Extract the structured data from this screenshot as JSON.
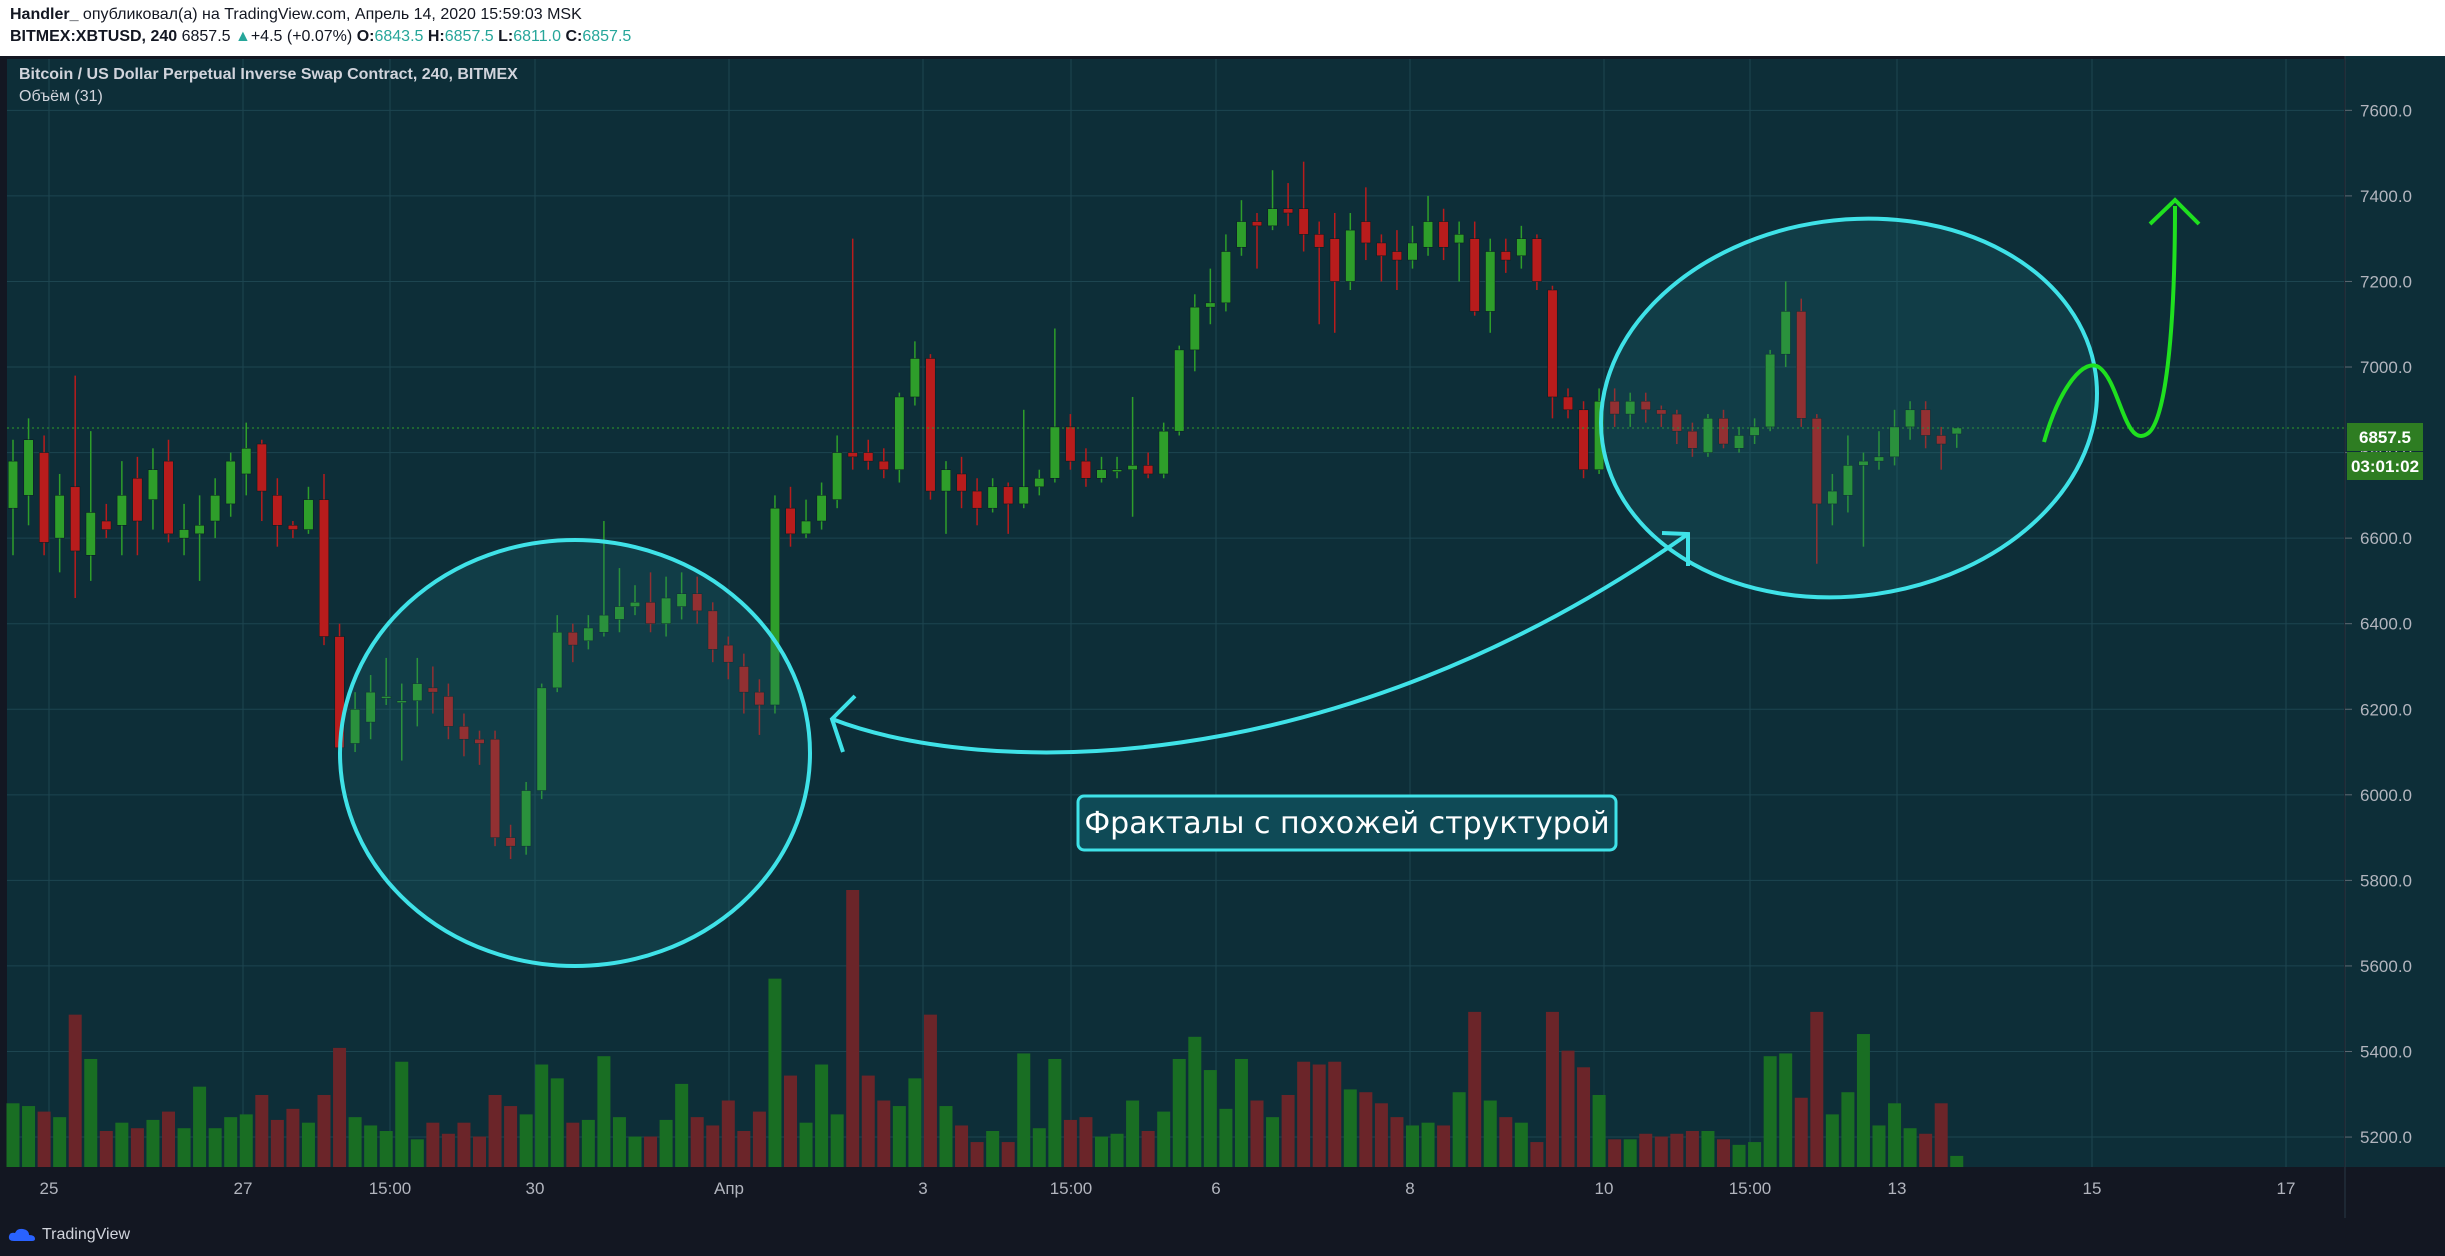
{
  "header": {
    "author": "Handler_",
    "published_text": " опубликовал(а) на TradingView.com, Апрель 14, 2020 15:59:03 MSK",
    "symbol": "BITMEX:XBTUSD, 240",
    "last": "6857.5",
    "change": "+4.5 (+0.07%)",
    "o_label": "O:",
    "o_val": "6843.5",
    "h_label": "H:",
    "h_val": "6857.5",
    "l_label": "L:",
    "l_val": "6811.0",
    "c_label": "C:",
    "c_val": "6857.5"
  },
  "legend": {
    "title": "Bitcoin / US Dollar Perpetual Inverse Swap Contract, 240, BITMEX",
    "volume_label": "Объём (31)"
  },
  "price_tag": {
    "price": "6857.5",
    "countdown": "03:01:02"
  },
  "annotation": {
    "text": "Фракталы с похожей структурой"
  },
  "footer": {
    "logo_text": "TradingView"
  },
  "colors": {
    "background": "#0d2e38",
    "up": "#2e9e2a",
    "down": "#b81c1c",
    "circle": "#3fe2e8",
    "projection": "#1fe01f"
  },
  "chart_data": {
    "type": "candlestick",
    "ylim": [
      5130,
      7720
    ],
    "y_ticks": [
      5200,
      5400,
      5600,
      5800,
      6000,
      6200,
      6400,
      6600,
      6800,
      7000,
      7200,
      7400,
      7600
    ],
    "x_labels": [
      "25",
      "27",
      "15:00",
      "30",
      "Апр",
      "3",
      "15:00",
      "6",
      "8",
      "10",
      "15:00",
      "13",
      "15",
      "17"
    ],
    "candles": [
      {
        "o": 6670,
        "c": 6780,
        "h": 6830,
        "l": 6560,
        "v": 0.23
      },
      {
        "o": 6700,
        "c": 6830,
        "h": 6880,
        "l": 6630,
        "v": 0.22
      },
      {
        "o": 6800,
        "c": 6590,
        "h": 6840,
        "l": 6560,
        "v": 0.2
      },
      {
        "o": 6600,
        "c": 6700,
        "h": 6750,
        "l": 6520,
        "v": 0.18
      },
      {
        "o": 6720,
        "c": 6570,
        "h": 6980,
        "l": 6460,
        "v": 0.55
      },
      {
        "o": 6560,
        "c": 6660,
        "h": 6850,
        "l": 6500,
        "v": 0.39
      },
      {
        "o": 6640,
        "c": 6620,
        "h": 6680,
        "l": 6600,
        "v": 0.13
      },
      {
        "o": 6630,
        "c": 6700,
        "h": 6780,
        "l": 6560,
        "v": 0.16
      },
      {
        "o": 6740,
        "c": 6640,
        "h": 6790,
        "l": 6560,
        "v": 0.14
      },
      {
        "o": 6690,
        "c": 6760,
        "h": 6810,
        "l": 6620,
        "v": 0.17
      },
      {
        "o": 6780,
        "c": 6610,
        "h": 6830,
        "l": 6590,
        "v": 0.2
      },
      {
        "o": 6600,
        "c": 6620,
        "h": 6680,
        "l": 6560,
        "v": 0.14
      },
      {
        "o": 6610,
        "c": 6630,
        "h": 6700,
        "l": 6500,
        "v": 0.29
      },
      {
        "o": 6640,
        "c": 6700,
        "h": 6740,
        "l": 6600,
        "v": 0.14
      },
      {
        "o": 6680,
        "c": 6780,
        "h": 6800,
        "l": 6650,
        "v": 0.18
      },
      {
        "o": 6750,
        "c": 6810,
        "h": 6870,
        "l": 6700,
        "v": 0.19
      },
      {
        "o": 6820,
        "c": 6710,
        "h": 6830,
        "l": 6640,
        "v": 0.26
      },
      {
        "o": 6700,
        "c": 6630,
        "h": 6740,
        "l": 6580,
        "v": 0.17
      },
      {
        "o": 6630,
        "c": 6620,
        "h": 6640,
        "l": 6600,
        "v": 0.21
      },
      {
        "o": 6620,
        "c": 6690,
        "h": 6720,
        "l": 6610,
        "v": 0.16
      },
      {
        "o": 6690,
        "c": 6370,
        "h": 6750,
        "l": 6350,
        "v": 0.26
      },
      {
        "o": 6370,
        "c": 6110,
        "h": 6400,
        "l": 6060,
        "v": 0.43
      },
      {
        "o": 6120,
        "c": 6200,
        "h": 6240,
        "l": 6100,
        "v": 0.18
      },
      {
        "o": 6170,
        "c": 6240,
        "h": 6280,
        "l": 6130,
        "v": 0.15
      },
      {
        "o": 6230,
        "c": 6230,
        "h": 6320,
        "l": 6210,
        "v": 0.13
      },
      {
        "o": 6220,
        "c": 6220,
        "h": 6260,
        "l": 6080,
        "v": 0.38
      },
      {
        "o": 6220,
        "c": 6260,
        "h": 6320,
        "l": 6160,
        "v": 0.1
      },
      {
        "o": 6250,
        "c": 6240,
        "h": 6300,
        "l": 6190,
        "v": 0.16
      },
      {
        "o": 6230,
        "c": 6160,
        "h": 6260,
        "l": 6130,
        "v": 0.12
      },
      {
        "o": 6160,
        "c": 6130,
        "h": 6190,
        "l": 6090,
        "v": 0.16
      },
      {
        "o": 6130,
        "c": 6120,
        "h": 6150,
        "l": 6070,
        "v": 0.11
      },
      {
        "o": 6130,
        "c": 5900,
        "h": 6150,
        "l": 5880,
        "v": 0.26
      },
      {
        "o": 5900,
        "c": 5880,
        "h": 5930,
        "l": 5850,
        "v": 0.22
      },
      {
        "o": 5880,
        "c": 6010,
        "h": 6030,
        "l": 5860,
        "v": 0.19
      },
      {
        "o": 6010,
        "c": 6250,
        "h": 6260,
        "l": 5990,
        "v": 0.37
      },
      {
        "o": 6250,
        "c": 6380,
        "h": 6420,
        "l": 6240,
        "v": 0.32
      },
      {
        "o": 6380,
        "c": 6350,
        "h": 6400,
        "l": 6310,
        "v": 0.16
      },
      {
        "o": 6360,
        "c": 6390,
        "h": 6420,
        "l": 6340,
        "v": 0.17
      },
      {
        "o": 6380,
        "c": 6420,
        "h": 6640,
        "l": 6370,
        "v": 0.4
      },
      {
        "o": 6410,
        "c": 6440,
        "h": 6530,
        "l": 6380,
        "v": 0.18
      },
      {
        "o": 6440,
        "c": 6450,
        "h": 6490,
        "l": 6420,
        "v": 0.11
      },
      {
        "o": 6450,
        "c": 6400,
        "h": 6520,
        "l": 6380,
        "v": 0.11
      },
      {
        "o": 6400,
        "c": 6460,
        "h": 6510,
        "l": 6370,
        "v": 0.17
      },
      {
        "o": 6440,
        "c": 6470,
        "h": 6520,
        "l": 6410,
        "v": 0.3
      },
      {
        "o": 6470,
        "c": 6430,
        "h": 6510,
        "l": 6400,
        "v": 0.18
      },
      {
        "o": 6430,
        "c": 6340,
        "h": 6450,
        "l": 6310,
        "v": 0.15
      },
      {
        "o": 6350,
        "c": 6310,
        "h": 6370,
        "l": 6270,
        "v": 0.24
      },
      {
        "o": 6300,
        "c": 6240,
        "h": 6330,
        "l": 6190,
        "v": 0.13
      },
      {
        "o": 6240,
        "c": 6210,
        "h": 6270,
        "l": 6140,
        "v": 0.2
      },
      {
        "o": 6210,
        "c": 6670,
        "h": 6700,
        "l": 6190,
        "v": 0.68
      },
      {
        "o": 6670,
        "c": 6610,
        "h": 6720,
        "l": 6580,
        "v": 0.33
      },
      {
        "o": 6610,
        "c": 6640,
        "h": 6690,
        "l": 6600,
        "v": 0.16
      },
      {
        "o": 6640,
        "c": 6700,
        "h": 6730,
        "l": 6620,
        "v": 0.37
      },
      {
        "o": 6690,
        "c": 6800,
        "h": 6840,
        "l": 6670,
        "v": 0.19
      },
      {
        "o": 6800,
        "c": 6790,
        "h": 7300,
        "l": 6760,
        "v": 1.0
      },
      {
        "o": 6800,
        "c": 6780,
        "h": 6830,
        "l": 6760,
        "v": 0.33
      },
      {
        "o": 6780,
        "c": 6760,
        "h": 6810,
        "l": 6740,
        "v": 0.24
      },
      {
        "o": 6760,
        "c": 6930,
        "h": 6940,
        "l": 6730,
        "v": 0.22
      },
      {
        "o": 6930,
        "c": 7020,
        "h": 7060,
        "l": 6910,
        "v": 0.32
      },
      {
        "o": 7020,
        "c": 6710,
        "h": 7030,
        "l": 6690,
        "v": 0.55
      },
      {
        "o": 6710,
        "c": 6760,
        "h": 6780,
        "l": 6610,
        "v": 0.22
      },
      {
        "o": 6750,
        "c": 6710,
        "h": 6790,
        "l": 6670,
        "v": 0.15
      },
      {
        "o": 6710,
        "c": 6670,
        "h": 6740,
        "l": 6630,
        "v": 0.09
      },
      {
        "o": 6670,
        "c": 6720,
        "h": 6740,
        "l": 6660,
        "v": 0.13
      },
      {
        "o": 6720,
        "c": 6680,
        "h": 6730,
        "l": 6610,
        "v": 0.09
      },
      {
        "o": 6680,
        "c": 6720,
        "h": 6900,
        "l": 6670,
        "v": 0.41
      },
      {
        "o": 6720,
        "c": 6740,
        "h": 6760,
        "l": 6700,
        "v": 0.14
      },
      {
        "o": 6740,
        "c": 6860,
        "h": 7090,
        "l": 6730,
        "v": 0.39
      },
      {
        "o": 6860,
        "c": 6780,
        "h": 6890,
        "l": 6760,
        "v": 0.17
      },
      {
        "o": 6780,
        "c": 6740,
        "h": 6810,
        "l": 6720,
        "v": 0.18
      },
      {
        "o": 6740,
        "c": 6760,
        "h": 6790,
        "l": 6730,
        "v": 0.11
      },
      {
        "o": 6760,
        "c": 6760,
        "h": 6790,
        "l": 6740,
        "v": 0.12
      },
      {
        "o": 6760,
        "c": 6770,
        "h": 6930,
        "l": 6650,
        "v": 0.24
      },
      {
        "o": 6770,
        "c": 6750,
        "h": 6800,
        "l": 6740,
        "v": 0.13
      },
      {
        "o": 6750,
        "c": 6850,
        "h": 6870,
        "l": 6740,
        "v": 0.2
      },
      {
        "o": 6850,
        "c": 7040,
        "h": 7050,
        "l": 6840,
        "v": 0.39
      },
      {
        "o": 7040,
        "c": 7140,
        "h": 7170,
        "l": 6990,
        "v": 0.47
      },
      {
        "o": 7140,
        "c": 7150,
        "h": 7230,
        "l": 7100,
        "v": 0.35
      },
      {
        "o": 7150,
        "c": 7270,
        "h": 7310,
        "l": 7130,
        "v": 0.21
      },
      {
        "o": 7280,
        "c": 7340,
        "h": 7390,
        "l": 7260,
        "v": 0.39
      },
      {
        "o": 7340,
        "c": 7330,
        "h": 7360,
        "l": 7230,
        "v": 0.24
      },
      {
        "o": 7330,
        "c": 7370,
        "h": 7460,
        "l": 7320,
        "v": 0.18
      },
      {
        "o": 7370,
        "c": 7360,
        "h": 7430,
        "l": 7330,
        "v": 0.26
      },
      {
        "o": 7370,
        "c": 7310,
        "h": 7480,
        "l": 7270,
        "v": 0.38
      },
      {
        "o": 7310,
        "c": 7280,
        "h": 7340,
        "l": 7100,
        "v": 0.37
      },
      {
        "o": 7300,
        "c": 7200,
        "h": 7360,
        "l": 7080,
        "v": 0.38
      },
      {
        "o": 7200,
        "c": 7320,
        "h": 7360,
        "l": 7180,
        "v": 0.28
      },
      {
        "o": 7340,
        "c": 7290,
        "h": 7420,
        "l": 7250,
        "v": 0.27
      },
      {
        "o": 7290,
        "c": 7260,
        "h": 7310,
        "l": 7200,
        "v": 0.23
      },
      {
        "o": 7270,
        "c": 7250,
        "h": 7320,
        "l": 7180,
        "v": 0.18
      },
      {
        "o": 7250,
        "c": 7290,
        "h": 7330,
        "l": 7230,
        "v": 0.15
      },
      {
        "o": 7280,
        "c": 7340,
        "h": 7400,
        "l": 7260,
        "v": 0.16
      },
      {
        "o": 7340,
        "c": 7280,
        "h": 7370,
        "l": 7250,
        "v": 0.15
      },
      {
        "o": 7290,
        "c": 7310,
        "h": 7340,
        "l": 7200,
        "v": 0.27
      },
      {
        "o": 7300,
        "c": 7130,
        "h": 7340,
        "l": 7120,
        "v": 0.56
      },
      {
        "o": 7130,
        "c": 7270,
        "h": 7300,
        "l": 7080,
        "v": 0.24
      },
      {
        "o": 7270,
        "c": 7250,
        "h": 7300,
        "l": 7220,
        "v": 0.18
      },
      {
        "o": 7260,
        "c": 7300,
        "h": 7330,
        "l": 7230,
        "v": 0.16
      },
      {
        "o": 7300,
        "c": 7200,
        "h": 7310,
        "l": 7180,
        "v": 0.09
      },
      {
        "o": 7180,
        "c": 6930,
        "h": 7190,
        "l": 6880,
        "v": 0.56
      },
      {
        "o": 6930,
        "c": 6900,
        "h": 6950,
        "l": 6880,
        "v": 0.42
      },
      {
        "o": 6900,
        "c": 6760,
        "h": 6920,
        "l": 6740,
        "v": 0.36
      },
      {
        "o": 6760,
        "c": 6920,
        "h": 6950,
        "l": 6750,
        "v": 0.26
      },
      {
        "o": 6920,
        "c": 6890,
        "h": 6950,
        "l": 6860,
        "v": 0.1
      },
      {
        "o": 6890,
        "c": 6920,
        "h": 6940,
        "l": 6860,
        "v": 0.1
      },
      {
        "o": 6920,
        "c": 6900,
        "h": 6940,
        "l": 6870,
        "v": 0.12
      },
      {
        "o": 6900,
        "c": 6890,
        "h": 6910,
        "l": 6860,
        "v": 0.11
      },
      {
        "o": 6890,
        "c": 6850,
        "h": 6900,
        "l": 6820,
        "v": 0.12
      },
      {
        "o": 6850,
        "c": 6810,
        "h": 6870,
        "l": 6790,
        "v": 0.13
      },
      {
        "o": 6800,
        "c": 6880,
        "h": 6890,
        "l": 6790,
        "v": 0.13
      },
      {
        "o": 6880,
        "c": 6820,
        "h": 6900,
        "l": 6810,
        "v": 0.1
      },
      {
        "o": 6810,
        "c": 6840,
        "h": 6860,
        "l": 6800,
        "v": 0.08
      },
      {
        "o": 6840,
        "c": 6860,
        "h": 6880,
        "l": 6820,
        "v": 0.09
      },
      {
        "o": 6860,
        "c": 7030,
        "h": 7040,
        "l": 6850,
        "v": 0.4
      },
      {
        "o": 7030,
        "c": 7130,
        "h": 7200,
        "l": 7000,
        "v": 0.41
      },
      {
        "o": 7130,
        "c": 6880,
        "h": 7160,
        "l": 6860,
        "v": 0.25
      },
      {
        "o": 6880,
        "c": 6680,
        "h": 6890,
        "l": 6540,
        "v": 0.56
      },
      {
        "o": 6680,
        "c": 6710,
        "h": 6750,
        "l": 6630,
        "v": 0.19
      },
      {
        "o": 6700,
        "c": 6770,
        "h": 6840,
        "l": 6660,
        "v": 0.27
      },
      {
        "o": 6770,
        "c": 6780,
        "h": 6800,
        "l": 6580,
        "v": 0.48
      },
      {
        "o": 6780,
        "c": 6790,
        "h": 6850,
        "l": 6760,
        "v": 0.15
      },
      {
        "o": 6790,
        "c": 6860,
        "h": 6900,
        "l": 6770,
        "v": 0.23
      },
      {
        "o": 6860,
        "c": 6900,
        "h": 6920,
        "l": 6830,
        "v": 0.14
      },
      {
        "o": 6900,
        "c": 6840,
        "h": 6920,
        "l": 6810,
        "v": 0.12
      },
      {
        "o": 6840,
        "c": 6820,
        "h": 6860,
        "l": 6760,
        "v": 0.23
      },
      {
        "o": 6843.5,
        "c": 6857.5,
        "h": 6857.5,
        "l": 6811,
        "v": 0.04
      }
    ]
  }
}
